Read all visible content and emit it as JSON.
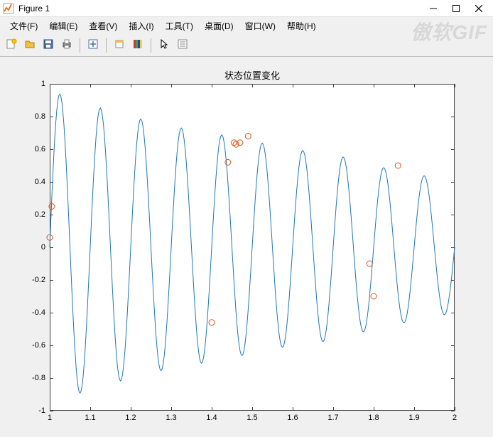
{
  "window": {
    "title": "Figure 1"
  },
  "menubar": {
    "items": [
      "文件(F)",
      "编辑(E)",
      "查看(V)",
      "插入(I)",
      "工具(T)",
      "桌面(D)",
      "窗口(W)",
      "帮助(H)"
    ]
  },
  "toolbar": {
    "groups": [
      [
        "new-figure-icon",
        "open-icon",
        "save-icon",
        "print-icon"
      ],
      [
        "link-icon"
      ],
      [
        "rotate-icon",
        "colorbar-icon"
      ],
      [
        "pointer-icon",
        "inspector-icon"
      ]
    ]
  },
  "chart": {
    "type": "line+scatter",
    "title": "状态位置变化",
    "background_color": "#ffffff",
    "figure_bg": "#f0f0f0",
    "axes_border": "#404040",
    "title_fontsize": 13,
    "tick_fontsize": 11,
    "xlim": [
      1,
      2
    ],
    "ylim": [
      -1,
      1
    ],
    "xticks": [
      1,
      1.1,
      1.2,
      1.3,
      1.4,
      1.5,
      1.6,
      1.7,
      1.8,
      1.9,
      2
    ],
    "yticks": [
      -1,
      -0.8,
      -0.6,
      -0.4,
      -0.2,
      0,
      0.2,
      0.4,
      0.6,
      0.8,
      1
    ],
    "line": {
      "color": "#1f77b4",
      "width": 1,
      "freq_hz": 10,
      "envelope": {
        "start": 0.96,
        "mid": 0.6,
        "end": 0.45
      },
      "damping_shape": "piecewise",
      "points_hint": 400
    },
    "scatter": {
      "marker": "circle",
      "edge_color": "#d95319",
      "fill": "none",
      "size_r": 4,
      "stroke_width": 1,
      "points": [
        {
          "x": 1.0,
          "y": 0.06
        },
        {
          "x": 1.005,
          "y": 0.25
        },
        {
          "x": 1.4,
          "y": -0.46
        },
        {
          "x": 1.44,
          "y": 0.52
        },
        {
          "x": 1.455,
          "y": 0.64
        },
        {
          "x": 1.46,
          "y": 0.63
        },
        {
          "x": 1.47,
          "y": 0.64
        },
        {
          "x": 1.49,
          "y": 0.68
        },
        {
          "x": 1.79,
          "y": -0.1
        },
        {
          "x": 1.8,
          "y": -0.3
        },
        {
          "x": 1.86,
          "y": 0.5
        }
      ]
    }
  },
  "watermark": "傲软GIF",
  "colors": {
    "titlebar_bg": "#ffffff",
    "menubar_bg": "#f0f0f0",
    "toolbar_bg": "#f0f0f0",
    "text": "#000000"
  }
}
